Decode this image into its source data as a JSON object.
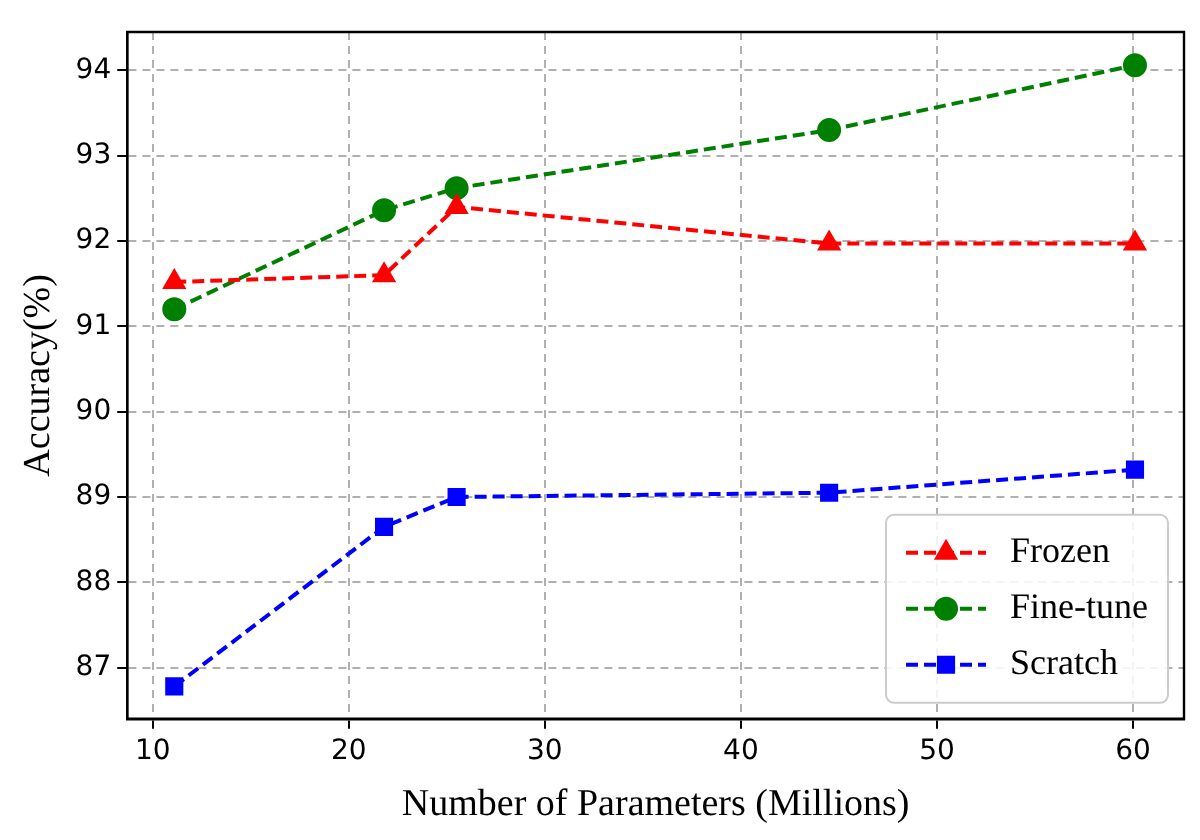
{
  "chart_data": {
    "type": "line",
    "xlabel": "Number of Parameters (Millions)",
    "ylabel": "Accuracy(%)",
    "x": [
      11.1,
      21.8,
      25.5,
      44.5,
      60.1
    ],
    "series": [
      {
        "name": "Frozen",
        "color": "#ff0000",
        "marker": "triangle",
        "values": [
          91.52,
          91.6,
          92.4,
          91.97,
          91.97
        ]
      },
      {
        "name": "Fine-tune",
        "color": "#008000",
        "marker": "circle",
        "values": [
          91.2,
          92.36,
          92.62,
          93.3,
          94.06
        ]
      },
      {
        "name": "Scratch",
        "color": "#0000ff",
        "marker": "square",
        "values": [
          86.78,
          88.65,
          89.0,
          89.05,
          89.32
        ]
      }
    ],
    "xlim": [
      8.7,
      62.6
    ],
    "ylim": [
      86.4,
      94.45
    ],
    "xticks": [
      10,
      20,
      30,
      40,
      50,
      60
    ],
    "yticks": [
      87,
      88,
      89,
      90,
      91,
      92,
      93,
      94
    ],
    "grid": true,
    "legend": "bottom right",
    "line_style": "dashed"
  }
}
